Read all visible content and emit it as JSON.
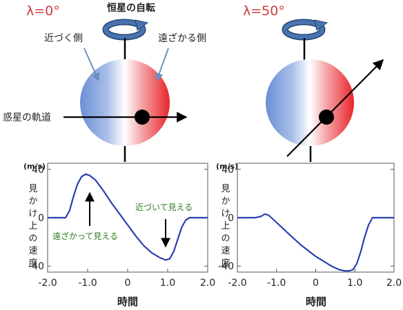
{
  "colors": {
    "approach_blue": "#6b8fd6",
    "recede_red": "#e8252b",
    "title_red": "#cc3a3a",
    "curve_blue": "#2a3fb0",
    "annotation_green": "#2e7d1f",
    "spin_arrow_fill": "#4a74b0",
    "spin_arrow_stroke": "#22466f"
  },
  "icons": {
    "spin_arrow": "curved-rotation-arrow-icon",
    "planet": "filled-black-circle",
    "pointer": "straight-arrow"
  },
  "left_panel": {
    "title": "λ=0°",
    "star_rotation_label": "恒星の自転",
    "approaching_side_label": "近づく側",
    "receding_side_label": "遠ざかる側",
    "orbit_label": "惑星の軌道",
    "annotation_receding": "遠ざかって見える",
    "annotation_approaching": "近づいて見える"
  },
  "right_panel": {
    "title": "λ=50°"
  },
  "chart_data": [
    {
      "type": "line",
      "unit_label": "(m/s)",
      "ylabel": "見かけ上の速度",
      "xlabel": "時間",
      "xlim": [
        -2.0,
        2.0
      ],
      "ylim": [
        -45,
        45
      ],
      "x_ticks": [
        "-2.0",
        "-1.0",
        "0",
        "1.0",
        "2.0"
      ],
      "y_ticks": [
        "40",
        "0",
        "-40"
      ],
      "grid": false,
      "x": [
        -2.0,
        -1.55,
        -1.45,
        -1.35,
        -1.25,
        -1.15,
        -1.05,
        -0.95,
        -0.8,
        -0.6,
        -0.4,
        -0.2,
        0.0,
        0.2,
        0.4,
        0.6,
        0.8,
        0.95,
        1.05,
        1.15,
        1.25,
        1.35,
        1.45,
        1.55,
        2.0
      ],
      "values": [
        0,
        0,
        6,
        18,
        28,
        34,
        36,
        35,
        31,
        22,
        12,
        3,
        -6,
        -15,
        -23,
        -29,
        -33,
        -35,
        -34,
        -28,
        -18,
        -8,
        -2,
        0,
        0
      ]
    },
    {
      "type": "line",
      "unit_label": "(m/s)",
      "ylabel": "見かけ上の速度",
      "xlabel": "時間",
      "xlim": [
        -2.0,
        2.0
      ],
      "ylim": [
        -45,
        45
      ],
      "x_ticks": [
        "-2.0",
        "-1.0",
        "0",
        "1.0",
        "2.0"
      ],
      "y_ticks": [
        "40",
        "0",
        "-40"
      ],
      "grid": false,
      "x": [
        -2.0,
        -1.55,
        -1.4,
        -1.3,
        -1.2,
        -1.0,
        -0.8,
        -0.6,
        -0.4,
        -0.2,
        0.0,
        0.2,
        0.4,
        0.6,
        0.75,
        0.85,
        0.95,
        1.05,
        1.15,
        1.25,
        1.35,
        1.45,
        2.0
      ],
      "values": [
        0,
        0,
        1,
        3,
        2,
        -4,
        -10,
        -16,
        -22,
        -27,
        -32,
        -36,
        -40,
        -43,
        -44,
        -44,
        -43,
        -38,
        -28,
        -16,
        -6,
        0,
        0
      ]
    }
  ]
}
